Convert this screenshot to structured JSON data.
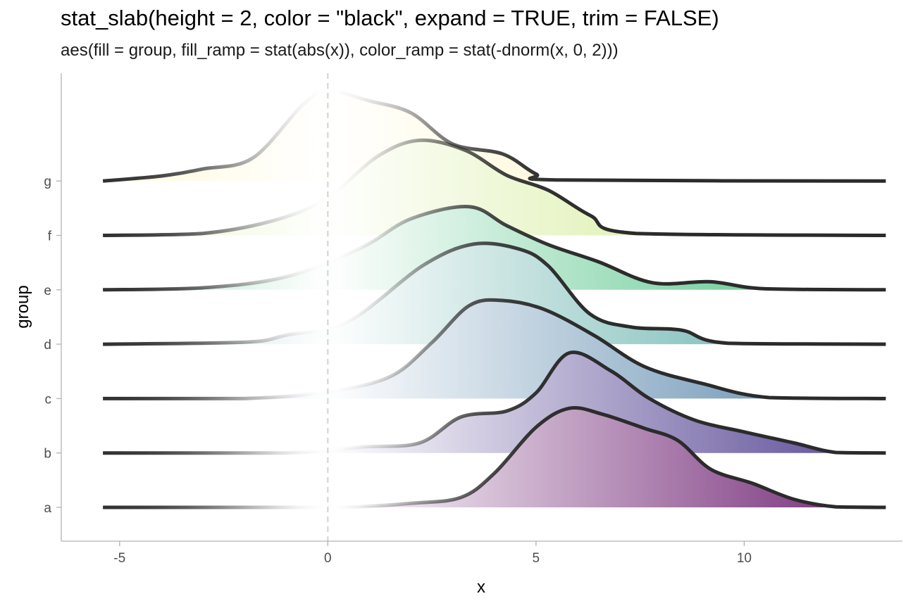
{
  "title": "stat_slab(height = 2, color = \"black\", expand = TRUE, trim = FALSE)",
  "subtitle": "aes(fill = group, fill_ramp = stat(abs(x)), color_ramp = stat(-dnorm(x, 0, 2)))",
  "chart_data": {
    "type": "area",
    "xlabel": "x",
    "ylabel": "group",
    "xlim": [
      -6.4,
      13.8
    ],
    "x_ticks": [
      -5,
      0,
      5,
      10
    ],
    "x_tick_labels": [
      "-5",
      "0",
      "5",
      "10"
    ],
    "x_range": [
      -5.4,
      13.4
    ],
    "reference_line": {
      "x": 0,
      "style": "dashed",
      "color": "#d9d9d9"
    },
    "grid": false,
    "legend": "none",
    "slab_height": 2,
    "outline_color": "#2b2b2b",
    "groups": [
      "a",
      "b",
      "c",
      "d",
      "e",
      "f",
      "g"
    ],
    "series": [
      {
        "group": "a",
        "fill": "#6A1B6E",
        "points": [
          [
            -5.4,
            0
          ],
          [
            -1,
            0
          ],
          [
            0.5,
            0.002
          ],
          [
            2,
            0.04
          ],
          [
            3.2,
            0.1
          ],
          [
            4,
            0.34
          ],
          [
            5,
            0.8
          ],
          [
            5.8,
            0.99
          ],
          [
            6.6,
            0.93
          ],
          [
            7.6,
            0.79
          ],
          [
            8.4,
            0.67
          ],
          [
            9.2,
            0.38
          ],
          [
            10.2,
            0.24
          ],
          [
            11.2,
            0.08
          ],
          [
            12.2,
            0.005
          ],
          [
            13.4,
            0
          ]
        ]
      },
      {
        "group": "b",
        "fill": "#4F3D8F",
        "points": [
          [
            -5.4,
            0
          ],
          [
            -1,
            0
          ],
          [
            0.8,
            0.06
          ],
          [
            2.2,
            0.1
          ],
          [
            3.2,
            0.36
          ],
          [
            4.3,
            0.42
          ],
          [
            5,
            0.6
          ],
          [
            5.8,
            1.0
          ],
          [
            6.8,
            0.82
          ],
          [
            7.7,
            0.55
          ],
          [
            8.8,
            0.33
          ],
          [
            10,
            0.21
          ],
          [
            11.2,
            0.1
          ],
          [
            12.2,
            0.005
          ],
          [
            13.4,
            0
          ]
        ]
      },
      {
        "group": "c",
        "fill": "#4E7FA6",
        "points": [
          [
            -5.4,
            0
          ],
          [
            -2,
            0
          ],
          [
            0,
            0.07
          ],
          [
            1.5,
            0.22
          ],
          [
            2.5,
            0.56
          ],
          [
            3.4,
            0.93
          ],
          [
            4.2,
            0.98
          ],
          [
            5.2,
            0.89
          ],
          [
            6.4,
            0.63
          ],
          [
            7.6,
            0.32
          ],
          [
            9,
            0.15
          ],
          [
            10.6,
            0.01
          ],
          [
            13.4,
            0
          ]
        ]
      },
      {
        "group": "d",
        "fill": "#4FA6A0",
        "points": [
          [
            -5.4,
            0
          ],
          [
            -2,
            0.02
          ],
          [
            -1,
            0.09
          ],
          [
            0.5,
            0.23
          ],
          [
            2.3,
            0.79
          ],
          [
            3.5,
            1.0
          ],
          [
            4.6,
            0.95
          ],
          [
            5.3,
            0.78
          ],
          [
            6.3,
            0.3
          ],
          [
            7.3,
            0.17
          ],
          [
            8.5,
            0.14
          ],
          [
            9.6,
            0.01
          ],
          [
            13.4,
            0
          ]
        ]
      },
      {
        "group": "e",
        "fill": "#3FBC7A",
        "points": [
          [
            -5.4,
            0
          ],
          [
            -3,
            0.02
          ],
          [
            -1,
            0.13
          ],
          [
            0.8,
            0.42
          ],
          [
            2,
            0.71
          ],
          [
            3.4,
            0.83
          ],
          [
            4.3,
            0.64
          ],
          [
            5.3,
            0.45
          ],
          [
            6.5,
            0.28
          ],
          [
            7.8,
            0.07
          ],
          [
            9.2,
            0.08
          ],
          [
            10.5,
            0.01
          ],
          [
            13.4,
            0
          ]
        ]
      },
      {
        "group": "f",
        "fill": "#C8E67A",
        "points": [
          [
            -5.4,
            0
          ],
          [
            -3,
            0.02
          ],
          [
            -1.2,
            0.16
          ],
          [
            0,
            0.38
          ],
          [
            1.2,
            0.79
          ],
          [
            2.2,
            0.95
          ],
          [
            3.3,
            0.85
          ],
          [
            4.3,
            0.6
          ],
          [
            5.3,
            0.45
          ],
          [
            6.3,
            0.2
          ],
          [
            7.4,
            0.02
          ],
          [
            13.4,
            0
          ]
        ]
      },
      {
        "group": "g",
        "fill": "#FFF2A8",
        "points": [
          [
            -5.4,
            0
          ],
          [
            -4,
            0.05
          ],
          [
            -3,
            0.12
          ],
          [
            -1.8,
            0.23
          ],
          [
            -0.6,
            0.76
          ],
          [
            0,
            0.9
          ],
          [
            1,
            0.8
          ],
          [
            2,
            0.68
          ],
          [
            3,
            0.37
          ],
          [
            4.2,
            0.27
          ],
          [
            5,
            0.07
          ],
          [
            5.6,
            0.01
          ],
          [
            13.4,
            0
          ]
        ]
      }
    ]
  }
}
